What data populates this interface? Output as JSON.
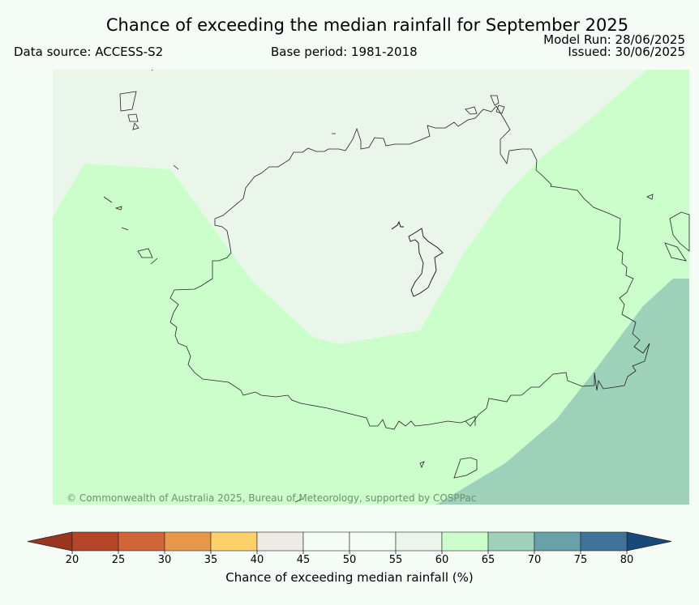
{
  "title": "Chance of exceeding the median rainfall for September 2025",
  "data_source": "Data source: ACCESS-S2",
  "base_period": "Base period: 1981-2018",
  "model_run": "Model Run: 28/06/2025",
  "issued": "Issued: 30/06/2025",
  "credit": "© Commonwealth of Australia 2025, Bureau of Meteorology, supported by COSPPac",
  "colorbar": {
    "label": "Chance of exceeding median rainfall (%)",
    "ticks": [
      "20",
      "25",
      "30",
      "35",
      "40",
      "45",
      "50",
      "55",
      "60",
      "65",
      "70",
      "75",
      "80"
    ],
    "bins": [
      {
        "range": "20-25",
        "color": "#b5462a"
      },
      {
        "range": "25-30",
        "color": "#d06637"
      },
      {
        "range": "30-35",
        "color": "#e79749"
      },
      {
        "range": "35-40",
        "color": "#fdd06a"
      },
      {
        "range": "40-45",
        "color": "#eeeae6"
      },
      {
        "range": "45-50",
        "color": "#f5fbf5"
      },
      {
        "range": "50-55",
        "color": "#f5fbf5"
      },
      {
        "range": "55-60",
        "color": "#eaf6ea"
      },
      {
        "range": "60-65",
        "color": "#ccfecc"
      },
      {
        "range": "65-70",
        "color": "#9dd1b9"
      },
      {
        "range": "70-75",
        "color": "#68a1a9"
      },
      {
        "range": "75-80",
        "color": "#3f7397"
      }
    ],
    "under_color": "#9a3520",
    "over_color": "#17497a"
  },
  "map_regions": [
    {
      "name": "55-60",
      "color": "#eaf6ea"
    },
    {
      "name": "60-65",
      "color": "#ccfecc"
    },
    {
      "name": "65-70",
      "color": "#9dd1b9"
    }
  ]
}
